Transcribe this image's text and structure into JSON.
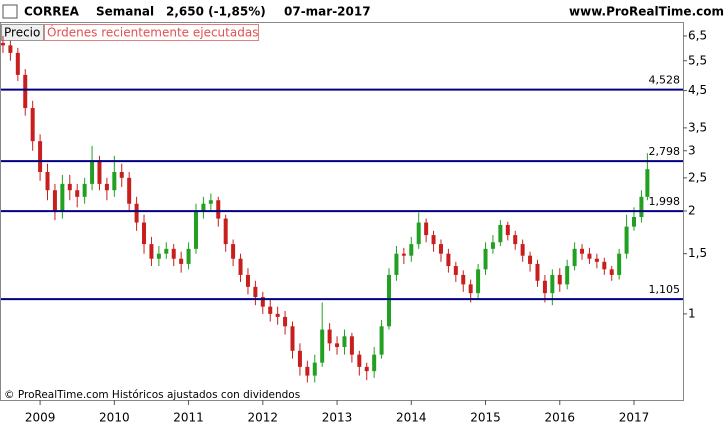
{
  "chart_data": {
    "type": "candlestick",
    "title": "CORREA",
    "period": "Semanal",
    "price_change": "2,650 (-1,85%)",
    "date": "07-mar-2017",
    "source": "www.ProRealTime.com",
    "tabs": [
      "Precio",
      "Órdenes recientemente ejecutadas"
    ],
    "footnote": "© ProRealTime.com Históricos ajustados con dividendos",
    "log_scale": true,
    "up_color": "#22a022",
    "down_color": "#c81e1e",
    "level_color": "#000080",
    "xlim": [
      2008.46,
      2017.66
    ],
    "xticks": [
      2009,
      2010,
      2011,
      2012,
      2013,
      2014,
      2015,
      2016,
      2017
    ],
    "ylim": [
      0.56,
      7.14
    ],
    "yticks": [
      {
        "value": 6.5,
        "label": "6,5"
      },
      {
        "value": 5.5,
        "label": "5,5"
      },
      {
        "value": 4.5,
        "label": "4,5"
      },
      {
        "value": 3.5,
        "label": "3,5"
      },
      3,
      {
        "value": 2.5,
        "label": "2,5"
      },
      2,
      {
        "value": 1.5,
        "label": "1,5"
      },
      1
    ],
    "levels": [
      {
        "value": 4.528,
        "label": "4,528"
      },
      {
        "value": 2.798,
        "label": "2,798"
      },
      {
        "value": 1.998,
        "label": "1,998"
      },
      {
        "value": 1.105,
        "label": "1,105"
      }
    ],
    "x": [
      2008.5,
      2008.6,
      2008.7,
      2008.8,
      2008.9,
      2009.0,
      2009.1,
      2009.2,
      2009.3,
      2009.4,
      2009.5,
      2009.6,
      2009.7,
      2009.8,
      2009.9,
      2010.0,
      2010.1,
      2010.2,
      2010.3,
      2010.4,
      2010.5,
      2010.6,
      2010.7,
      2010.8,
      2010.9,
      2011.0,
      2011.1,
      2011.2,
      2011.3,
      2011.4,
      2011.5,
      2011.6,
      2011.7,
      2011.8,
      2011.9,
      2012.0,
      2012.1,
      2012.2,
      2012.3,
      2012.4,
      2012.5,
      2012.6,
      2012.7,
      2012.8,
      2012.9,
      2013.0,
      2013.1,
      2013.2,
      2013.3,
      2013.4,
      2013.5,
      2013.6,
      2013.7,
      2013.8,
      2013.9,
      2014.0,
      2014.1,
      2014.2,
      2014.3,
      2014.4,
      2014.5,
      2014.6,
      2014.7,
      2014.8,
      2014.9,
      2015.0,
      2015.1,
      2015.2,
      2015.3,
      2015.4,
      2015.5,
      2015.6,
      2015.7,
      2015.8,
      2015.9,
      2016.0,
      2016.1,
      2016.2,
      2016.3,
      2016.4,
      2016.5,
      2016.6,
      2016.7,
      2016.8,
      2016.9,
      2017.0,
      2017.1,
      2017.18
    ],
    "open": [
      6.2,
      6.1,
      5.8,
      5.0,
      4.0,
      3.2,
      2.6,
      2.3,
      2.0,
      2.4,
      2.3,
      2.2,
      2.4,
      2.8,
      2.4,
      2.3,
      2.6,
      2.5,
      2.1,
      1.85,
      1.6,
      1.45,
      1.5,
      1.55,
      1.45,
      1.4,
      1.55,
      2.0,
      2.1,
      2.15,
      1.9,
      1.6,
      1.45,
      1.3,
      1.2,
      1.12,
      1.05,
      1.0,
      0.98,
      0.92,
      0.78,
      0.7,
      0.66,
      0.72,
      0.9,
      0.82,
      0.8,
      0.86,
      0.76,
      0.7,
      0.68,
      0.76,
      0.92,
      1.3,
      1.5,
      1.48,
      1.6,
      1.85,
      1.7,
      1.6,
      1.5,
      1.38,
      1.3,
      1.22,
      1.15,
      1.35,
      1.55,
      1.62,
      1.82,
      1.7,
      1.6,
      1.48,
      1.4,
      1.25,
      1.15,
      1.3,
      1.22,
      1.38,
      1.55,
      1.5,
      1.45,
      1.42,
      1.35,
      1.3,
      1.5,
      1.8,
      1.92,
      2.2
    ],
    "high": [
      6.5,
      6.3,
      6.0,
      5.2,
      4.2,
      3.35,
      2.75,
      2.4,
      2.55,
      2.55,
      2.4,
      2.5,
      3.1,
      2.9,
      2.5,
      2.9,
      2.75,
      2.6,
      2.2,
      1.95,
      1.68,
      1.58,
      1.62,
      1.6,
      1.52,
      1.62,
      2.1,
      2.2,
      2.25,
      2.2,
      1.95,
      1.65,
      1.5,
      1.36,
      1.25,
      1.16,
      1.1,
      1.05,
      1.02,
      0.95,
      0.82,
      0.73,
      0.76,
      1.08,
      0.94,
      0.86,
      0.9,
      0.88,
      0.78,
      0.72,
      0.8,
      0.96,
      1.36,
      1.58,
      1.56,
      1.68,
      1.98,
      1.9,
      1.75,
      1.65,
      1.55,
      1.42,
      1.34,
      1.26,
      1.4,
      1.62,
      1.7,
      1.88,
      1.86,
      1.75,
      1.65,
      1.52,
      1.44,
      1.3,
      1.35,
      1.36,
      1.44,
      1.62,
      1.6,
      1.56,
      1.5,
      1.46,
      1.38,
      1.55,
      1.95,
      2.05,
      2.3,
      2.95
    ],
    "low": [
      5.8,
      5.5,
      4.8,
      3.8,
      3.0,
      2.45,
      2.15,
      1.88,
      1.9,
      2.15,
      2.05,
      2.1,
      2.3,
      2.3,
      2.15,
      2.2,
      2.35,
      2.0,
      1.75,
      1.5,
      1.38,
      1.38,
      1.45,
      1.38,
      1.32,
      1.35,
      1.5,
      1.9,
      2.0,
      1.8,
      1.52,
      1.38,
      1.24,
      1.14,
      1.06,
      1.0,
      0.95,
      0.93,
      0.87,
      0.74,
      0.66,
      0.63,
      0.63,
      0.7,
      0.78,
      0.76,
      0.76,
      0.72,
      0.66,
      0.64,
      0.65,
      0.74,
      0.9,
      1.25,
      1.4,
      1.42,
      1.55,
      1.62,
      1.52,
      1.42,
      1.32,
      1.24,
      1.16,
      1.08,
      1.1,
      1.3,
      1.5,
      1.58,
      1.64,
      1.54,
      1.42,
      1.33,
      1.2,
      1.08,
      1.06,
      1.16,
      1.18,
      1.34,
      1.44,
      1.4,
      1.36,
      1.3,
      1.25,
      1.26,
      1.45,
      1.75,
      1.85,
      2.15
    ],
    "close": [
      6.1,
      5.8,
      5.0,
      4.0,
      3.2,
      2.6,
      2.3,
      2.0,
      2.4,
      2.3,
      2.2,
      2.4,
      2.8,
      2.4,
      2.3,
      2.6,
      2.5,
      2.1,
      1.85,
      1.6,
      1.45,
      1.5,
      1.55,
      1.45,
      1.4,
      1.55,
      2.0,
      2.1,
      2.15,
      1.9,
      1.6,
      1.45,
      1.3,
      1.2,
      1.12,
      1.05,
      1.0,
      0.98,
      0.92,
      0.78,
      0.7,
      0.66,
      0.72,
      0.9,
      0.82,
      0.8,
      0.86,
      0.76,
      0.7,
      0.68,
      0.76,
      0.92,
      1.3,
      1.5,
      1.48,
      1.6,
      1.85,
      1.7,
      1.6,
      1.5,
      1.38,
      1.3,
      1.22,
      1.15,
      1.35,
      1.55,
      1.62,
      1.82,
      1.7,
      1.6,
      1.48,
      1.4,
      1.25,
      1.15,
      1.3,
      1.22,
      1.38,
      1.55,
      1.5,
      1.45,
      1.42,
      1.35,
      1.3,
      1.5,
      1.8,
      1.92,
      2.2,
      2.65
    ]
  }
}
